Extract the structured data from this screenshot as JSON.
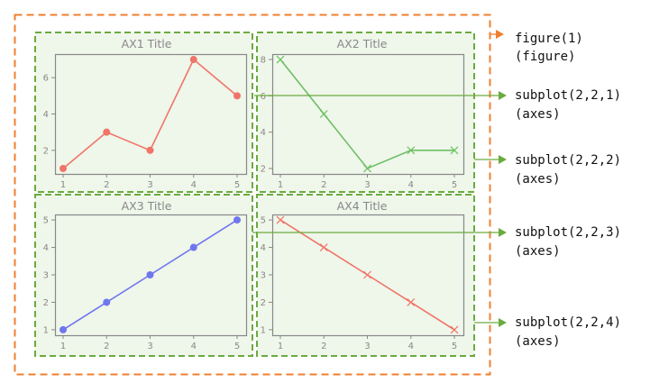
{
  "colors": {
    "figure_border": "#f07f2f",
    "axes_border": "#6aab3f",
    "panel_bg": "#eff6ea",
    "frame": "#888888",
    "arrow_green": "#6aab3f",
    "arrow_orange": "#f07f2f"
  },
  "labels": [
    {
      "name": "figure",
      "line1": "figure(1)",
      "line2": "(figure)"
    },
    {
      "name": "subplot-1",
      "line1": "subplot(2,2,1)",
      "line2": "(axes)"
    },
    {
      "name": "subplot-2",
      "line1": "subplot(2,2,2)",
      "line2": "(axes)"
    },
    {
      "name": "subplot-3",
      "line1": "subplot(2,2,3)",
      "line2": "(axes)"
    },
    {
      "name": "subplot-4",
      "line1": "subplot(2,2,4)",
      "line2": "(axes)"
    }
  ],
  "chart_data": [
    {
      "type": "line",
      "title": "AX1 Title",
      "x": [
        1,
        2,
        3,
        4,
        5
      ],
      "y": [
        1,
        3,
        2,
        7,
        5
      ],
      "color": "#f07468",
      "marker": "circle",
      "xticks": [
        "1",
        "2",
        "3",
        "4",
        "5"
      ],
      "yticks": [
        "2",
        "4",
        "6"
      ],
      "ylim": [
        0.7,
        7.3
      ]
    },
    {
      "type": "line",
      "title": "AX2 Title",
      "x": [
        1,
        2,
        3,
        4,
        5
      ],
      "y": [
        8,
        5,
        2,
        3,
        3
      ],
      "color": "#6cbf63",
      "marker": "x",
      "xticks": [
        "1",
        "2",
        "3",
        "4",
        "5"
      ],
      "yticks": [
        "2",
        "4",
        "6",
        "8"
      ],
      "ylim": [
        1.7,
        8.3
      ]
    },
    {
      "type": "line",
      "title": "AX3 Title",
      "x": [
        1,
        2,
        3,
        4,
        5
      ],
      "y": [
        1,
        2,
        3,
        4,
        5
      ],
      "color": "#6f76ee",
      "marker": "circle",
      "xticks": [
        "1",
        "2",
        "3",
        "4",
        "5"
      ],
      "yticks": [
        "1",
        "2",
        "3",
        "4",
        "5"
      ],
      "ylim": [
        0.8,
        5.2
      ]
    },
    {
      "type": "line",
      "title": "AX4 Title",
      "x": [
        1,
        2,
        3,
        4,
        5
      ],
      "y": [
        5,
        4,
        3,
        2,
        1
      ],
      "color": "#f07468",
      "marker": "x",
      "xticks": [
        "1",
        "2",
        "3",
        "4",
        "5"
      ],
      "yticks": [
        "1",
        "2",
        "3",
        "4",
        "5"
      ],
      "ylim": [
        0.8,
        5.2
      ]
    }
  ]
}
